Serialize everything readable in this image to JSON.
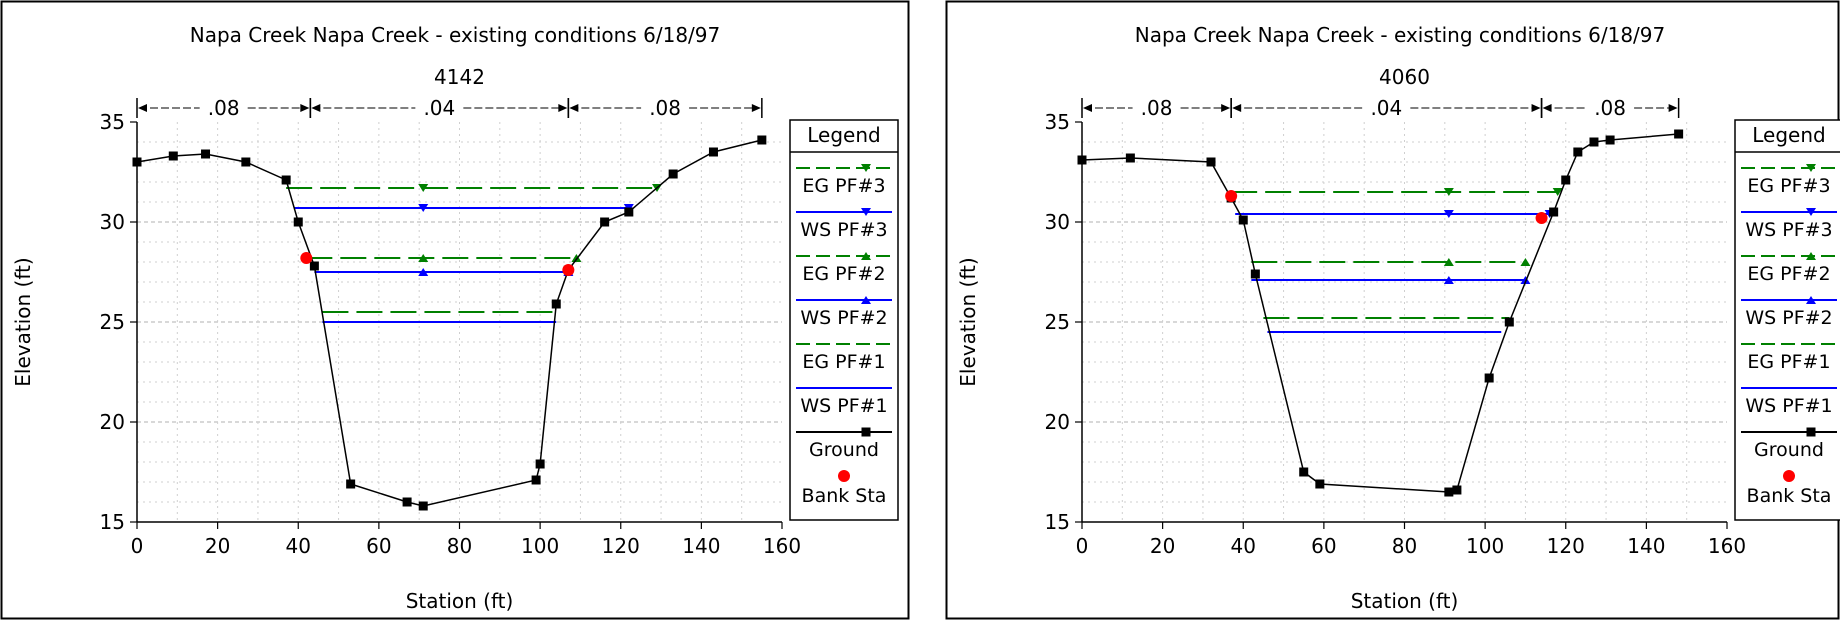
{
  "chart_data": [
    {
      "type": "line",
      "title": "Napa Creek   Napa Creek - existing conditions    6/18/97",
      "subtitle": "4142",
      "xlabel": "Station (ft)",
      "ylabel": "Elevation (ft)",
      "xlim": [
        0,
        160
      ],
      "ylim": [
        15,
        35
      ],
      "xticks": [
        "0",
        "20",
        "40",
        "60",
        "80",
        "100",
        "120",
        "140",
        "160"
      ],
      "yticks": [
        "15",
        "20",
        "25",
        "30",
        "35"
      ],
      "grid": true,
      "legend_title": "Legend",
      "legend_position": "right",
      "manning_n": [
        {
          "label": ".08",
          "from": 0,
          "to": 43
        },
        {
          "label": ".04",
          "from": 43,
          "to": 107
        },
        {
          "label": ".08",
          "from": 107,
          "to": 155
        }
      ],
      "series": [
        {
          "name": "EG PF#3",
          "color": "#008000",
          "style": "dashed",
          "marker": "triangle-down",
          "x": [
            37,
            71,
            129
          ],
          "y": [
            31.7,
            31.7,
            31.7
          ]
        },
        {
          "name": "WS PF#3",
          "color": "#0000ff",
          "style": "solid",
          "marker": "triangle-down",
          "x": [
            39,
            71,
            122
          ],
          "y": [
            30.7,
            30.7,
            30.7
          ]
        },
        {
          "name": "EG PF#2",
          "color": "#008000",
          "style": "dashed",
          "marker": "triangle-up",
          "x": [
            42,
            71,
            109
          ],
          "y": [
            28.2,
            28.2,
            28.2
          ]
        },
        {
          "name": "WS PF#2",
          "color": "#0000ff",
          "style": "solid",
          "marker": "triangle-up",
          "x": [
            44,
            71,
            107
          ],
          "y": [
            27.5,
            27.5,
            27.5
          ]
        },
        {
          "name": "EG PF#1",
          "color": "#008000",
          "style": "dashed",
          "marker": "none",
          "x": [
            46,
            104
          ],
          "y": [
            25.5,
            25.5
          ]
        },
        {
          "name": "WS PF#1",
          "color": "#0000ff",
          "style": "solid",
          "marker": "none",
          "x": [
            46,
            104
          ],
          "y": [
            25.0,
            25.0
          ]
        },
        {
          "name": "Ground",
          "color": "#000000",
          "style": "solid",
          "marker": "square",
          "x": [
            0,
            9,
            17,
            27,
            37,
            40,
            44,
            53,
            67,
            71,
            99,
            100,
            104,
            107,
            116,
            122,
            133,
            143,
            155
          ],
          "y": [
            33.0,
            33.3,
            33.4,
            33.0,
            32.1,
            30.0,
            27.8,
            16.9,
            16.0,
            15.8,
            17.1,
            17.9,
            25.9,
            27.6,
            30.0,
            30.5,
            32.4,
            33.5,
            34.1
          ]
        },
        {
          "name": "Bank Sta",
          "color": "#ff0000",
          "style": "none",
          "marker": "circle",
          "x": [
            42,
            107
          ],
          "y": [
            28.2,
            27.6
          ]
        }
      ]
    },
    {
      "type": "line",
      "title": "Napa Creek   Napa Creek - existing conditions    6/18/97",
      "subtitle": "4060",
      "xlabel": "Station (ft)",
      "ylabel": "Elevation (ft)",
      "xlim": [
        0,
        160
      ],
      "ylim": [
        15,
        35
      ],
      "xticks": [
        "0",
        "20",
        "40",
        "60",
        "80",
        "100",
        "120",
        "140",
        "160"
      ],
      "yticks": [
        "15",
        "20",
        "25",
        "30",
        "35"
      ],
      "grid": true,
      "legend_title": "Legend",
      "legend_position": "right",
      "manning_n": [
        {
          "label": ".08",
          "from": 0,
          "to": 37
        },
        {
          "label": ".04",
          "from": 37,
          "to": 114
        },
        {
          "label": ".08",
          "from": 114,
          "to": 148
        }
      ],
      "series": [
        {
          "name": "EG PF#3",
          "color": "#008000",
          "style": "dashed",
          "marker": "triangle-down",
          "x": [
            37,
            91,
            118
          ],
          "y": [
            31.5,
            31.5,
            31.5
          ]
        },
        {
          "name": "WS PF#3",
          "color": "#0000ff",
          "style": "solid",
          "marker": "triangle-down",
          "x": [
            38,
            91,
            116
          ],
          "y": [
            30.4,
            30.4,
            30.4
          ]
        },
        {
          "name": "EG PF#2",
          "color": "#008000",
          "style": "dashed",
          "marker": "triangle-up",
          "x": [
            42,
            91,
            110
          ],
          "y": [
            28.0,
            28.0,
            28.0
          ]
        },
        {
          "name": "WS PF#2",
          "color": "#0000ff",
          "style": "solid",
          "marker": "triangle-up",
          "x": [
            42,
            91,
            110
          ],
          "y": [
            27.1,
            27.1,
            27.1
          ]
        },
        {
          "name": "EG PF#1",
          "color": "#008000",
          "style": "dashed",
          "marker": "none",
          "x": [
            45,
            106
          ],
          "y": [
            25.2,
            25.2
          ]
        },
        {
          "name": "WS PF#1",
          "color": "#0000ff",
          "style": "solid",
          "marker": "none",
          "x": [
            46,
            104
          ],
          "y": [
            24.5,
            24.5
          ]
        },
        {
          "name": "Ground",
          "color": "#000000",
          "style": "solid",
          "marker": "square",
          "x": [
            0,
            12,
            32,
            37,
            40,
            43,
            55,
            59,
            91,
            93,
            101,
            106,
            117,
            120,
            123,
            127,
            131,
            148
          ],
          "y": [
            33.1,
            33.2,
            33.0,
            31.2,
            30.1,
            27.4,
            17.5,
            16.9,
            16.5,
            16.6,
            22.2,
            25.0,
            30.5,
            32.1,
            33.5,
            34.0,
            34.1,
            34.4
          ]
        },
        {
          "name": "Bank Sta",
          "color": "#ff0000",
          "style": "none",
          "marker": "circle",
          "x": [
            37,
            114
          ],
          "y": [
            31.3,
            30.2
          ]
        }
      ]
    }
  ]
}
